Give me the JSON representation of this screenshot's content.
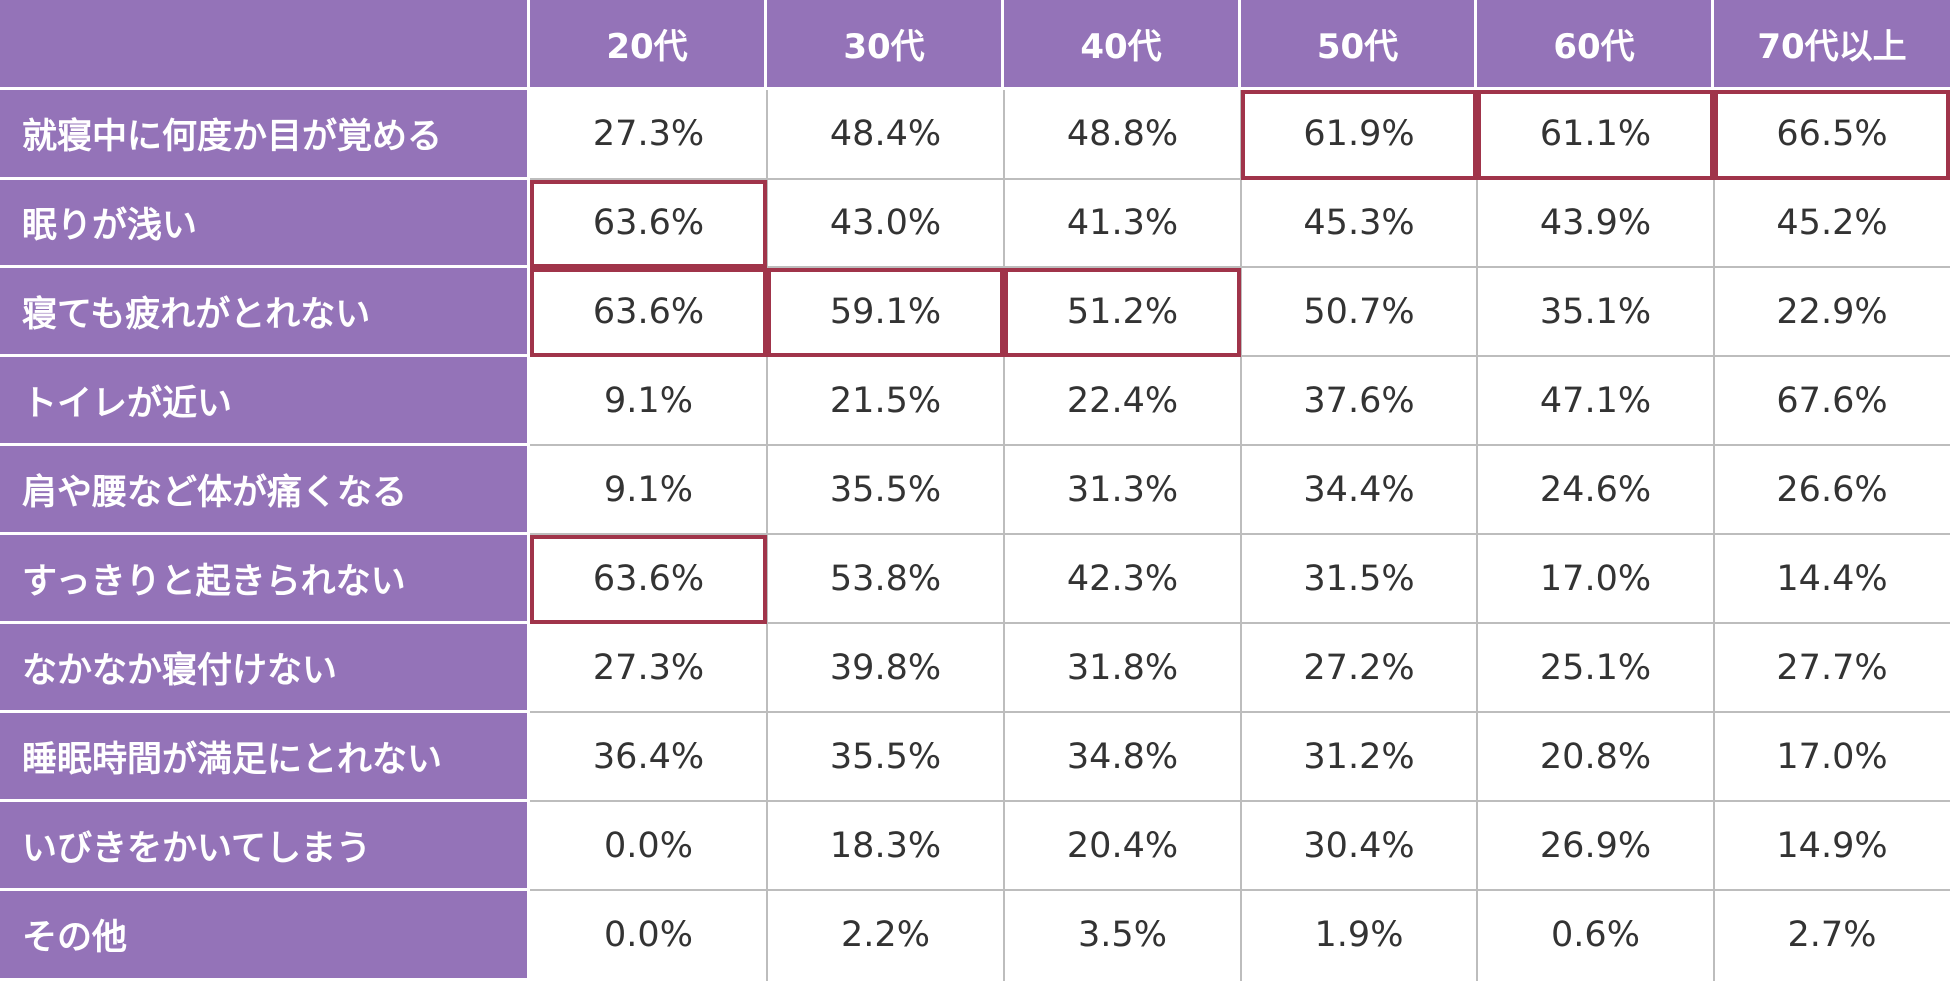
{
  "colors": {
    "header_bg": "#9473b8",
    "header_text": "#ffffff",
    "value_text": "#333333",
    "grid": "#bdbdbd",
    "highlight": "#a0344a"
  },
  "chart_data": {
    "type": "table",
    "columns": [
      "20代",
      "30代",
      "40代",
      "50代",
      "60代",
      "70代以上"
    ],
    "rows": [
      {
        "label": "就寝中に何度か目が覚める",
        "values": [
          "27.3%",
          "48.4%",
          "48.8%",
          "61.9%",
          "61.1%",
          "66.5%"
        ],
        "highlighted": [
          3,
          4,
          5
        ]
      },
      {
        "label": "眠りが浅い",
        "values": [
          "63.6%",
          "43.0%",
          "41.3%",
          "45.3%",
          "43.9%",
          "45.2%"
        ],
        "highlighted": [
          0
        ]
      },
      {
        "label": "寝ても疲れがとれない",
        "values": [
          "63.6%",
          "59.1%",
          "51.2%",
          "50.7%",
          "35.1%",
          "22.9%"
        ],
        "highlighted": [
          0,
          1,
          2
        ]
      },
      {
        "label": "トイレが近い",
        "values": [
          "9.1%",
          "21.5%",
          "22.4%",
          "37.6%",
          "47.1%",
          "67.6%"
        ],
        "highlighted": []
      },
      {
        "label": "肩や腰など体が痛くなる",
        "values": [
          "9.1%",
          "35.5%",
          "31.3%",
          "34.4%",
          "24.6%",
          "26.6%"
        ],
        "highlighted": []
      },
      {
        "label": "すっきりと起きられない",
        "values": [
          "63.6%",
          "53.8%",
          "42.3%",
          "31.5%",
          "17.0%",
          "14.4%"
        ],
        "highlighted": [
          0
        ]
      },
      {
        "label": "なかなか寝付けない",
        "values": [
          "27.3%",
          "39.8%",
          "31.8%",
          "27.2%",
          "25.1%",
          "27.7%"
        ],
        "highlighted": []
      },
      {
        "label": "睡眠時間が満足にとれない",
        "values": [
          "36.4%",
          "35.5%",
          "34.8%",
          "31.2%",
          "20.8%",
          "17.0%"
        ],
        "highlighted": []
      },
      {
        "label": "いびきをかいてしまう",
        "values": [
          "0.0%",
          "18.3%",
          "20.4%",
          "30.4%",
          "26.9%",
          "14.9%"
        ],
        "highlighted": []
      },
      {
        "label": "その他",
        "values": [
          "0.0%",
          "2.2%",
          "3.5%",
          "1.9%",
          "0.6%",
          "2.7%"
        ],
        "highlighted": []
      }
    ]
  }
}
